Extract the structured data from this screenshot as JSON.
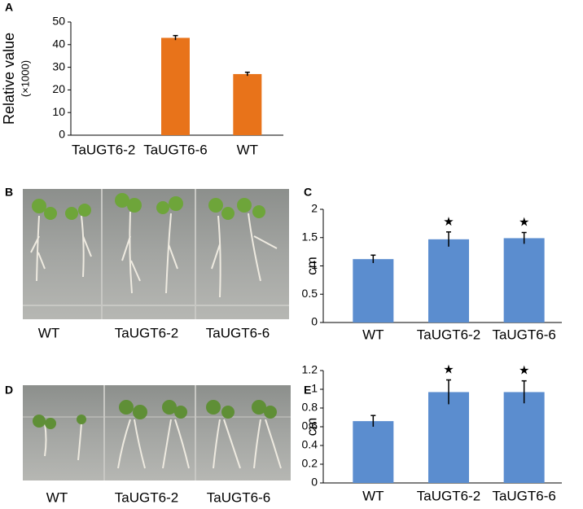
{
  "panel_labels": [
    "A",
    "B",
    "C",
    "D",
    "E"
  ],
  "photos": [
    {
      "captions": [
        "WT",
        "TaUGT6-2",
        "TaUGT6-6"
      ]
    },
    {
      "captions": [
        "WT",
        "TaUGT6-2",
        "TaUGT6-6"
      ]
    }
  ],
  "chart_data": [
    {
      "type": "bar",
      "ylabel": "Relative value",
      "ylabel_sub": "(×1000)",
      "categories": [
        "TaUGT6-2",
        "TaUGT6-6",
        "WT"
      ],
      "values": [
        0,
        43,
        27
      ],
      "errors": [
        0,
        1,
        0.8
      ],
      "color": "#e8731a",
      "ylim": [
        0,
        50
      ],
      "yticks": [
        0,
        10,
        20,
        30,
        40,
        50
      ]
    },
    {
      "type": "bar",
      "ylabel": "cm",
      "categories": [
        "WT",
        "TaUGT6-2",
        "TaUGT6-6"
      ],
      "values": [
        1.12,
        1.47,
        1.49
      ],
      "errors": [
        0.07,
        0.13,
        0.1
      ],
      "markers": [
        null,
        "★",
        "★"
      ],
      "color": "#5b8dcf",
      "ylim": [
        0,
        2
      ],
      "yticks": [
        0,
        0.5,
        1,
        1.5,
        2
      ]
    },
    {
      "type": "bar",
      "ylabel": "cm",
      "categories": [
        "WT",
        "TaUGT6-2",
        "TaUGT6-6"
      ],
      "values": [
        0.66,
        0.97,
        0.97
      ],
      "errors": [
        0.06,
        0.13,
        0.12
      ],
      "markers": [
        null,
        "★",
        "★"
      ],
      "color": "#5b8dcf",
      "ylim": [
        0,
        1.2
      ],
      "yticks": [
        0,
        0.2,
        0.4,
        0.6,
        0.8,
        1,
        1.2
      ]
    }
  ]
}
